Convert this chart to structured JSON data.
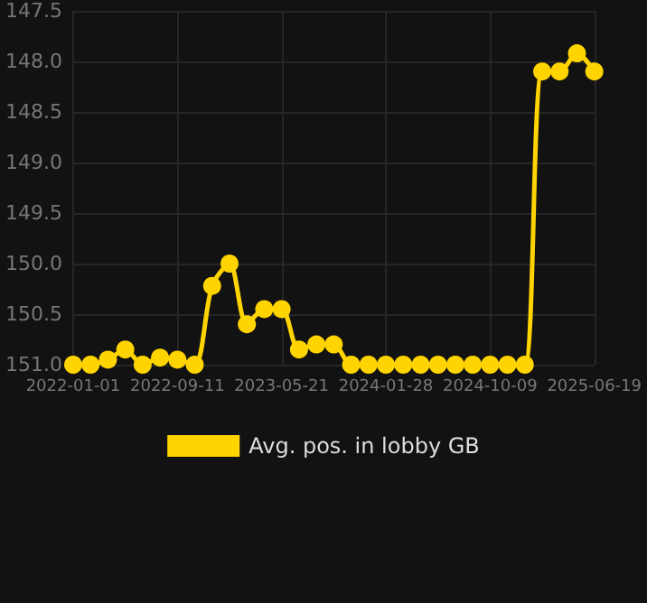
{
  "chart_data": {
    "type": "line",
    "categories": [
      "2022-01-01",
      null,
      null,
      null,
      null,
      null,
      "2022-09-11",
      null,
      null,
      null,
      null,
      null,
      "2023-05-21",
      null,
      null,
      null,
      null,
      null,
      "2024-01-28",
      null,
      null,
      null,
      null,
      null,
      "2024-10-09",
      null,
      null,
      null,
      null,
      null,
      "2025-06-19"
    ],
    "series": [
      {
        "name": "Avg. pos. in lobby GB",
        "color": "#ffd400",
        "values": [
          151.0,
          151.0,
          150.95,
          150.85,
          151.0,
          150.93,
          150.95,
          151.0,
          150.22,
          150.0,
          150.6,
          150.45,
          150.45,
          150.85,
          150.8,
          150.8,
          151.0,
          151.0,
          151.0,
          151.0,
          151.0,
          151.0,
          151.0,
          151.0,
          151.0,
          151.0,
          151.0,
          148.1,
          148.1,
          147.92,
          148.1
        ]
      }
    ],
    "ylim": [
      151.0,
      147.5
    ],
    "yticks": [
      {
        "value": 147.5,
        "label": "147.5"
      },
      {
        "value": 148,
        "label": "148.0"
      },
      {
        "value": 148.5,
        "label": "148.5"
      },
      {
        "value": 149,
        "label": "149.0"
      },
      {
        "value": 149.5,
        "label": "149.5"
      },
      {
        "value": 150,
        "label": "150.0"
      },
      {
        "value": 150.5,
        "label": "150.5"
      },
      {
        "value": 151,
        "label": "151.0"
      }
    ],
    "grid": true,
    "legend": "bottom",
    "marker": "circle",
    "line_style": "solid"
  }
}
